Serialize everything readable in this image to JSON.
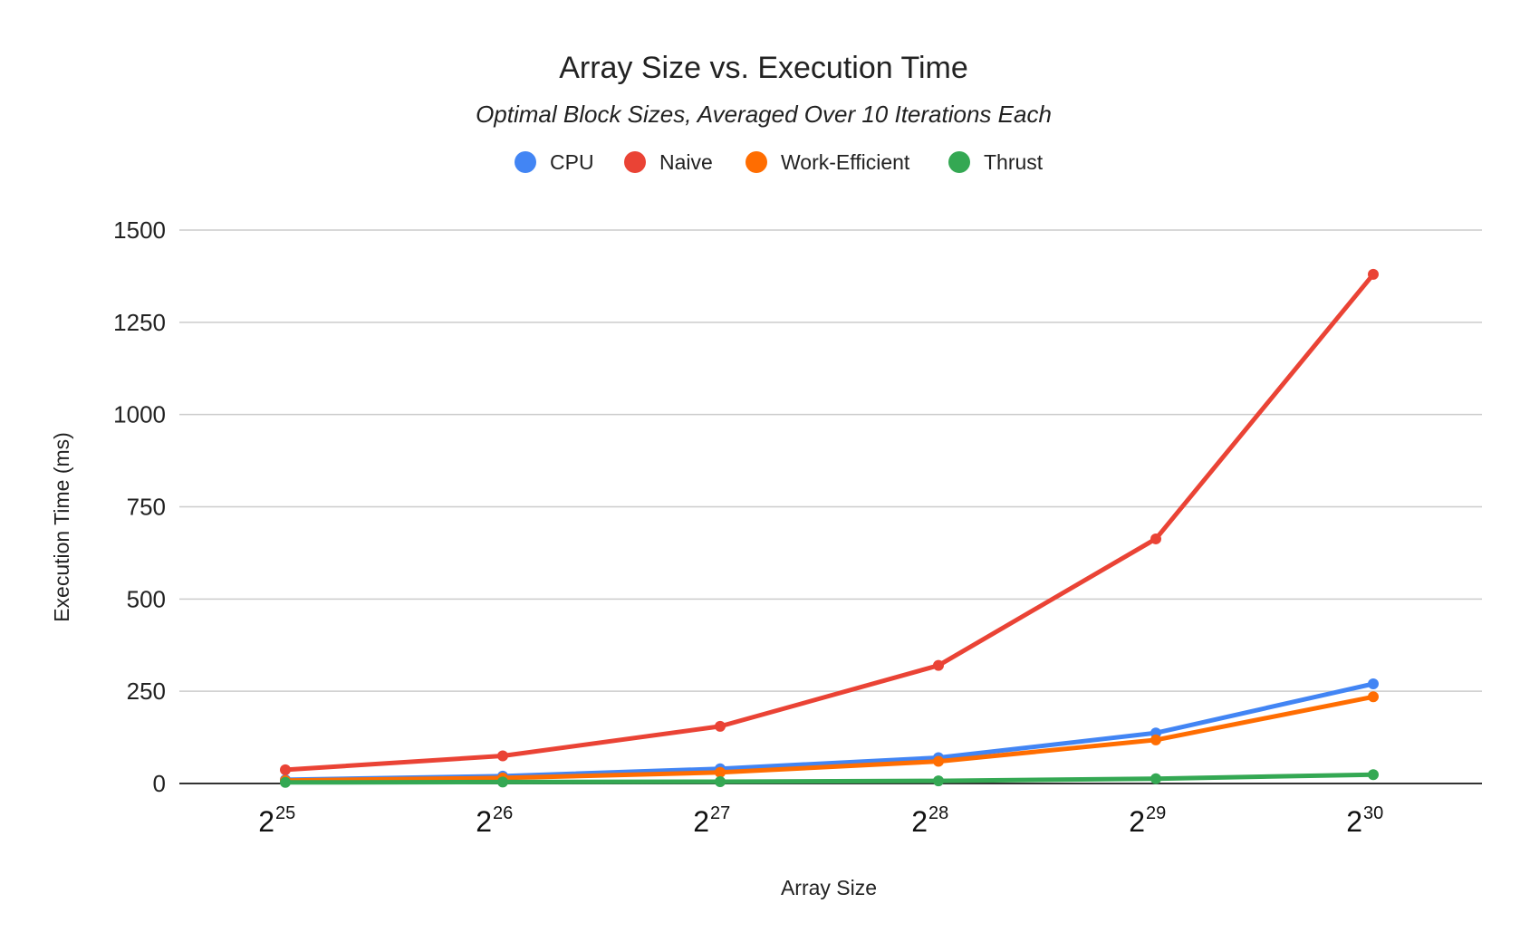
{
  "chart_data": {
    "type": "line",
    "title": "Array Size vs. Execution Time",
    "subtitle": "Optimal Block Sizes, Averaged Over 10 Iterations Each",
    "xlabel": "Array Size",
    "ylabel": "Execution Time (ms)",
    "categories": [
      {
        "base": "2",
        "exp": "25"
      },
      {
        "base": "2",
        "exp": "26"
      },
      {
        "base": "2",
        "exp": "27"
      },
      {
        "base": "2",
        "exp": "28"
      },
      {
        "base": "2",
        "exp": "29"
      },
      {
        "base": "2",
        "exp": "30"
      }
    ],
    "ylim": [
      0,
      1500
    ],
    "yticks": [
      0,
      250,
      500,
      750,
      1000,
      1250,
      1500
    ],
    "grid": true,
    "legend": "top-center",
    "series": [
      {
        "name": "CPU",
        "color": "#4285f4",
        "values": [
          10,
          20,
          40,
          70,
          137,
          270
        ]
      },
      {
        "name": "Naive",
        "color": "#ea4335",
        "values": [
          37,
          75,
          155,
          320,
          663,
          1380
        ]
      },
      {
        "name": "Work-Efficient",
        "color": "#ff6d01",
        "values": [
          8,
          15,
          30,
          60,
          118,
          235
        ]
      },
      {
        "name": "Thrust",
        "color": "#34a853",
        "values": [
          3,
          4,
          5,
          7,
          13,
          24
        ]
      }
    ]
  }
}
